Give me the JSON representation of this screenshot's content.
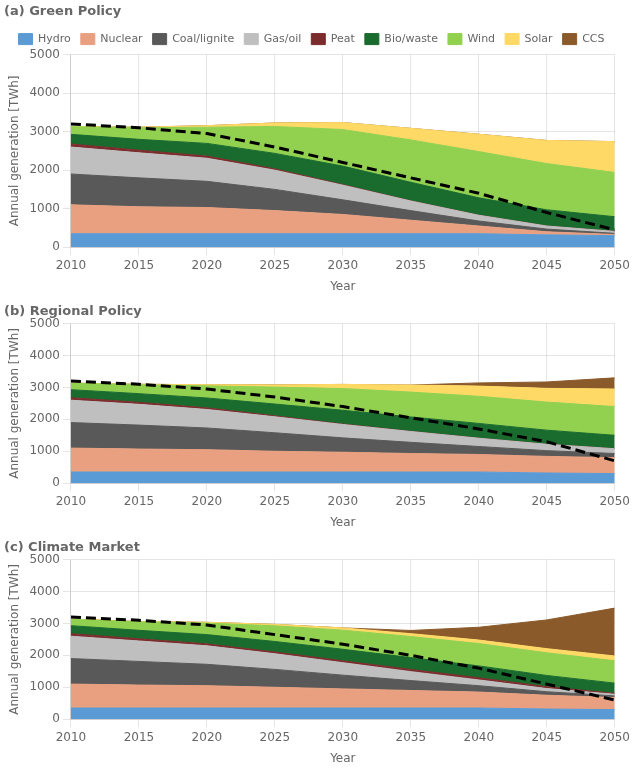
{
  "chart_data": [
    {
      "type": "area",
      "title": "(a) Green Policy",
      "stacked": true,
      "grid": true,
      "legend": "top",
      "x_label": "Year",
      "y_label": "Annual generation [TWh]",
      "x": [
        2010,
        2015,
        2020,
        2025,
        2030,
        2035,
        2040,
        2045,
        2050
      ],
      "xlim": [
        2010,
        2050
      ],
      "xticks": [
        2010,
        2015,
        2020,
        2025,
        2030,
        2035,
        2040,
        2045,
        2050
      ],
      "ylim": [
        0,
        5000
      ],
      "yticks": [
        0,
        1000,
        2000,
        3000,
        4000,
        5000
      ],
      "series": [
        {
          "name": "Hydro",
          "color": "#5b9bd5",
          "values": [
            350,
            350,
            350,
            350,
            350,
            350,
            350,
            320,
            300
          ]
        },
        {
          "name": "Nuclear",
          "color": "#e8a080",
          "values": [
            750,
            700,
            680,
            600,
            500,
            350,
            200,
            80,
            30
          ]
        },
        {
          "name": "Coal/lignite",
          "color": "#595959",
          "values": [
            800,
            750,
            680,
            550,
            380,
            250,
            130,
            70,
            30
          ]
        },
        {
          "name": "Gas/oil",
          "color": "#bfbfbf",
          "values": [
            700,
            650,
            600,
            500,
            380,
            250,
            150,
            80,
            50
          ]
        },
        {
          "name": "Peat",
          "color": "#7b2c2c",
          "values": [
            80,
            70,
            55,
            35,
            15,
            5,
            2,
            1,
            1
          ]
        },
        {
          "name": "Bio/waste",
          "color": "#1a6b2e",
          "values": [
            250,
            280,
            330,
            400,
            480,
            480,
            450,
            420,
            380
          ]
        },
        {
          "name": "Wind",
          "color": "#92d050",
          "values": [
            200,
            300,
            420,
            700,
            950,
            1100,
            1200,
            1200,
            1150
          ]
        },
        {
          "name": "Solar",
          "color": "#ffd966",
          "values": [
            5,
            15,
            40,
            90,
            180,
            300,
            450,
            600,
            800
          ]
        },
        {
          "name": "CCS",
          "color": "#8b5a2b",
          "values": [
            0,
            0,
            0,
            0,
            0,
            0,
            0,
            0,
            0
          ]
        },
        {
          "type": "line",
          "line_style": "dashed",
          "color": "#000000",
          "values": [
            3200,
            3100,
            2950,
            2600,
            2200,
            1800,
            1400,
            900,
            450
          ]
        }
      ]
    },
    {
      "type": "area",
      "title": "(b) Regional Policy",
      "stacked": true,
      "grid": true,
      "x_label": "Year",
      "y_label": "Annual generation [TWh]",
      "x": [
        2010,
        2015,
        2020,
        2025,
        2030,
        2035,
        2040,
        2045,
        2050
      ],
      "xlim": [
        2010,
        2050
      ],
      "xticks": [
        2010,
        2015,
        2020,
        2025,
        2030,
        2035,
        2040,
        2045,
        2050
      ],
      "ylim": [
        0,
        5000
      ],
      "yticks": [
        0,
        1000,
        2000,
        3000,
        4000,
        5000
      ],
      "series": [
        {
          "name": "Hydro",
          "color": "#5b9bd5",
          "values": [
            350,
            350,
            350,
            350,
            350,
            350,
            350,
            320,
            300
          ]
        },
        {
          "name": "Nuclear",
          "color": "#e8a080",
          "values": [
            750,
            720,
            700,
            650,
            620,
            580,
            550,
            520,
            500
          ]
        },
        {
          "name": "Coal/lignite",
          "color": "#595959",
          "values": [
            800,
            750,
            680,
            580,
            450,
            350,
            250,
            180,
            130
          ]
        },
        {
          "name": "Gas/oil",
          "color": "#bfbfbf",
          "values": [
            700,
            650,
            580,
            500,
            420,
            340,
            260,
            200,
            150
          ]
        },
        {
          "name": "Peat",
          "color": "#7b2c2c",
          "values": [
            80,
            65,
            50,
            30,
            15,
            5,
            2,
            1,
            1
          ]
        },
        {
          "name": "Bio/waste",
          "color": "#1a6b2e",
          "values": [
            250,
            270,
            310,
            370,
            430,
            450,
            460,
            440,
            420
          ]
        },
        {
          "name": "Wind",
          "color": "#92d050",
          "values": [
            200,
            280,
            380,
            530,
            680,
            780,
            850,
            880,
            900
          ]
        },
        {
          "name": "Solar",
          "color": "#ffd966",
          "values": [
            5,
            15,
            35,
            70,
            130,
            220,
            320,
            430,
            550
          ]
        },
        {
          "name": "CCS",
          "color": "#8b5a2b",
          "values": [
            0,
            0,
            0,
            0,
            0,
            0,
            100,
            200,
            350
          ]
        },
        {
          "type": "line",
          "line_style": "dashed",
          "color": "#000000",
          "values": [
            3200,
            3100,
            2950,
            2700,
            2400,
            2050,
            1700,
            1300,
            700
          ]
        }
      ]
    },
    {
      "type": "area",
      "title": "(c) Climate Market",
      "stacked": true,
      "grid": true,
      "x_label": "Year",
      "y_label": "Annual generation [TWh]",
      "x": [
        2010,
        2015,
        2020,
        2025,
        2030,
        2035,
        2040,
        2045,
        2050
      ],
      "xlim": [
        2010,
        2050
      ],
      "xticks": [
        2010,
        2015,
        2020,
        2025,
        2030,
        2035,
        2040,
        2045,
        2050
      ],
      "ylim": [
        0,
        5000
      ],
      "yticks": [
        0,
        1000,
        2000,
        3000,
        4000,
        5000
      ],
      "series": [
        {
          "name": "Hydro",
          "color": "#5b9bd5",
          "values": [
            350,
            350,
            350,
            350,
            350,
            350,
            350,
            320,
            300
          ]
        },
        {
          "name": "Nuclear",
          "color": "#e8a080",
          "values": [
            750,
            720,
            700,
            650,
            600,
            550,
            500,
            430,
            380
          ]
        },
        {
          "name": "Coal/lignite",
          "color": "#595959",
          "values": [
            800,
            740,
            670,
            560,
            430,
            310,
            200,
            110,
            50
          ]
        },
        {
          "name": "Gas/oil",
          "color": "#bfbfbf",
          "values": [
            700,
            640,
            580,
            490,
            390,
            280,
            180,
            100,
            50
          ]
        },
        {
          "name": "Peat",
          "color": "#7b2c2c",
          "values": [
            80,
            70,
            60,
            55,
            60,
            70,
            70,
            60,
            30
          ]
        },
        {
          "name": "Bio/waste",
          "color": "#1a6b2e",
          "values": [
            250,
            265,
            290,
            330,
            360,
            370,
            370,
            350,
            320
          ]
        },
        {
          "name": "Wind",
          "color": "#92d050",
          "values": [
            200,
            265,
            360,
            490,
            600,
            660,
            700,
            710,
            700
          ]
        },
        {
          "name": "Solar",
          "color": "#ffd966",
          "values": [
            5,
            10,
            25,
            45,
            70,
            90,
            110,
            130,
            150
          ]
        },
        {
          "name": "CCS",
          "color": "#8b5a2b",
          "values": [
            0,
            0,
            0,
            0,
            0,
            100,
            400,
            900,
            1500
          ]
        },
        {
          "type": "line",
          "line_style": "dashed",
          "color": "#000000",
          "values": [
            3200,
            3100,
            2950,
            2650,
            2350,
            2000,
            1600,
            1100,
            600
          ]
        }
      ]
    }
  ]
}
